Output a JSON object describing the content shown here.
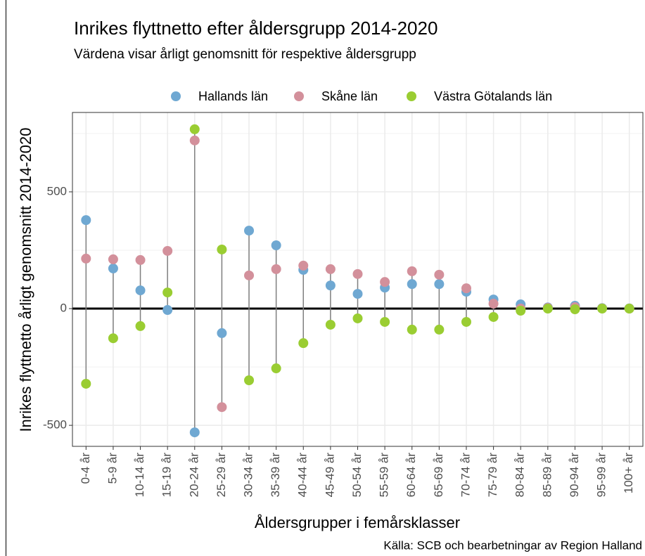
{
  "chart_data": {
    "type": "dot",
    "title": "Inrikes flyttnetto efter åldersgrupp 2014-2020",
    "subtitle": "Värdena visar årligt genomsnitt för respektive åldersgrupp",
    "x_label": "Åldersgrupper i femårsklasser",
    "y_label": "Inrikes flyttnetto årligt genomsnitt 2014-2020",
    "caption": "Källa: SCB och bearbetningar av Region Halland",
    "categories": [
      "0-4 år",
      "5-9 år",
      "10-14 år",
      "15-19 år",
      "20-24 år",
      "25-29 år",
      "30-34 år",
      "35-39 år",
      "40-44 år",
      "45-49 år",
      "50-54 år",
      "55-59 år",
      "60-64 år",
      "65-69 år",
      "70-74 år",
      "75-79 år",
      "80-84 år",
      "85-89 år",
      "90-94 år",
      "95-99 år",
      "100+ år"
    ],
    "series": [
      {
        "name": "Hallands län",
        "color": "#6fa8d2",
        "values": [
          379,
          172,
          78,
          -6,
          -530,
          -105,
          334,
          271,
          166,
          99,
          63,
          90,
          105,
          105,
          72,
          39,
          18,
          5,
          12,
          2,
          1
        ]
      },
      {
        "name": "Skåne län",
        "color": "#d3909b",
        "values": [
          214,
          211,
          208,
          247,
          720,
          -422,
          142,
          169,
          184,
          169,
          148,
          114,
          160,
          145,
          87,
          21,
          0,
          3,
          6,
          1,
          0
        ]
      },
      {
        "name": "Västra Götalands län",
        "color": "#9acd32",
        "values": [
          -322,
          -127,
          -75,
          69,
          768,
          253,
          -307,
          -256,
          -148,
          -69,
          -42,
          -57,
          -90,
          -90,
          -57,
          -36,
          -9,
          0,
          -3,
          0,
          0
        ]
      }
    ],
    "ylim": [
      -590,
      840
    ],
    "yticks": [
      -500,
      0,
      500
    ],
    "grid": true,
    "legend": "top"
  }
}
